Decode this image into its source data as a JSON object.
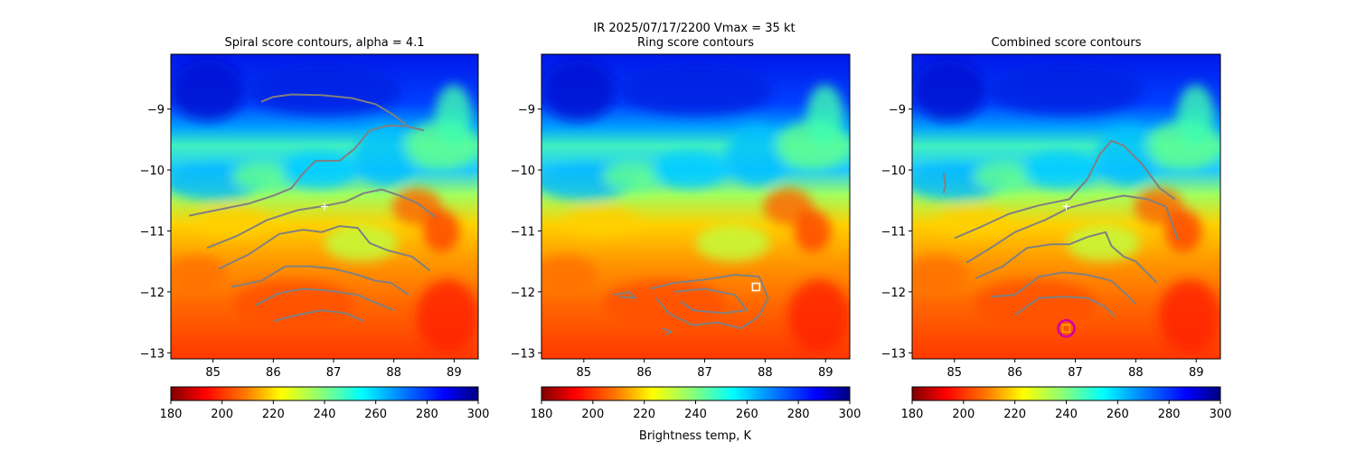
{
  "figure": {
    "suptitle_line1": "IR  2025/07/17/2200    Vmax = 35 kt",
    "colorbar_label": "Brightness temp, K"
  },
  "chart_data": [
    {
      "type": "heatmap",
      "title": "Spiral score contours, alpha =  4.1",
      "xlim": [
        84.3,
        89.4
      ],
      "ylim": [
        -13.1,
        -8.1
      ],
      "x_ticks": [
        85,
        86,
        87,
        88,
        89
      ],
      "y_ticks": [
        -9,
        -10,
        -11,
        -12,
        -13
      ],
      "x_tick_labels": [
        "85",
        "86",
        "87",
        "88",
        "89"
      ],
      "y_tick_labels": [
        "−9",
        "−10",
        "−11",
        "−12",
        "−13"
      ],
      "colorbar": {
        "vmin": 180,
        "vmax": 300,
        "ticks": [
          180,
          200,
          220,
          240,
          260,
          280,
          300
        ],
        "tick_labels": [
          "180",
          "200",
          "220",
          "240",
          "260",
          "280",
          "300"
        ],
        "cmap": "jet_r"
      },
      "contour_color": "#808080",
      "contours": [
        [
          [
            85.8,
            -8.88
          ],
          [
            86.0,
            -8.8
          ],
          [
            86.3,
            -8.76
          ],
          [
            86.8,
            -8.77
          ],
          [
            87.3,
            -8.82
          ],
          [
            87.7,
            -8.92
          ],
          [
            88.0,
            -9.1
          ],
          [
            88.2,
            -9.25
          ]
        ],
        [
          [
            88.5,
            -9.35
          ],
          [
            88.2,
            -9.28
          ],
          [
            87.9,
            -9.27
          ],
          [
            87.6,
            -9.35
          ],
          [
            87.35,
            -9.65
          ],
          [
            87.1,
            -9.85
          ],
          [
            86.7,
            -9.85
          ],
          [
            86.5,
            -10.05
          ],
          [
            86.3,
            -10.3
          ],
          [
            86.0,
            -10.42
          ],
          [
            85.6,
            -10.55
          ],
          [
            85.1,
            -10.65
          ],
          [
            84.6,
            -10.75
          ]
        ],
        [
          [
            84.9,
            -11.28
          ],
          [
            85.4,
            -11.08
          ],
          [
            85.9,
            -10.82
          ],
          [
            86.4,
            -10.66
          ],
          [
            86.9,
            -10.58
          ],
          [
            87.2,
            -10.52
          ],
          [
            87.5,
            -10.38
          ],
          [
            87.8,
            -10.32
          ],
          [
            88.1,
            -10.42
          ],
          [
            88.4,
            -10.55
          ],
          [
            88.7,
            -10.78
          ]
        ],
        [
          [
            85.1,
            -11.62
          ],
          [
            85.6,
            -11.38
          ],
          [
            86.1,
            -11.05
          ],
          [
            86.5,
            -10.98
          ],
          [
            86.8,
            -11.02
          ],
          [
            87.1,
            -10.92
          ],
          [
            87.4,
            -10.95
          ],
          [
            87.6,
            -11.2
          ],
          [
            87.9,
            -11.32
          ],
          [
            88.3,
            -11.42
          ],
          [
            88.6,
            -11.65
          ]
        ],
        [
          [
            85.3,
            -11.92
          ],
          [
            85.8,
            -11.82
          ],
          [
            86.2,
            -11.58
          ],
          [
            86.6,
            -11.58
          ],
          [
            87.0,
            -11.62
          ],
          [
            87.4,
            -11.72
          ],
          [
            87.7,
            -11.82
          ],
          [
            87.95,
            -11.85
          ],
          [
            88.25,
            -12.05
          ]
        ],
        [
          [
            85.7,
            -12.22
          ],
          [
            86.1,
            -12.02
          ],
          [
            86.5,
            -11.95
          ],
          [
            86.9,
            -11.98
          ],
          [
            87.4,
            -12.05
          ],
          [
            87.8,
            -12.22
          ],
          [
            88.0,
            -12.3
          ]
        ],
        [
          [
            86.0,
            -12.48
          ],
          [
            86.4,
            -12.38
          ],
          [
            86.8,
            -12.3
          ],
          [
            87.2,
            -12.35
          ],
          [
            87.5,
            -12.48
          ]
        ]
      ],
      "markers": [
        {
          "x": 86.85,
          "y": -10.6,
          "symbol": "+",
          "color": "#ffffff"
        }
      ]
    },
    {
      "type": "heatmap",
      "title": "Ring score contours",
      "xlim": [
        84.3,
        89.4
      ],
      "ylim": [
        -13.1,
        -8.1
      ],
      "x_ticks": [
        85,
        86,
        87,
        88,
        89
      ],
      "y_ticks": [
        -9,
        -10,
        -11,
        -12,
        -13
      ],
      "x_tick_labels": [
        "85",
        "86",
        "87",
        "88",
        "89"
      ],
      "y_tick_labels": [
        "−9",
        "−10",
        "−11",
        "−12",
        "−13"
      ],
      "colorbar": {
        "vmin": 180,
        "vmax": 300,
        "ticks": [
          180,
          200,
          220,
          240,
          260,
          280,
          300
        ],
        "tick_labels": [
          "180",
          "200",
          "220",
          "240",
          "260",
          "280",
          "300"
        ],
        "cmap": "jet_r"
      },
      "contour_color": "#808080",
      "contours": [
        [
          [
            85.5,
            -12.05
          ],
          [
            85.75,
            -12.0
          ],
          [
            85.85,
            -12.1
          ],
          [
            85.6,
            -12.08
          ]
        ],
        [
          [
            86.1,
            -11.95
          ],
          [
            86.5,
            -11.85
          ],
          [
            87.0,
            -11.8
          ],
          [
            87.5,
            -11.72
          ],
          [
            87.9,
            -11.75
          ],
          [
            88.05,
            -12.1
          ],
          [
            87.9,
            -12.4
          ],
          [
            87.6,
            -12.6
          ],
          [
            87.2,
            -12.5
          ],
          [
            86.8,
            -12.55
          ],
          [
            86.4,
            -12.35
          ],
          [
            86.2,
            -12.1
          ]
        ],
        [
          [
            86.5,
            -12.0
          ],
          [
            87.0,
            -11.95
          ],
          [
            87.5,
            -12.05
          ],
          [
            87.7,
            -12.3
          ],
          [
            87.3,
            -12.35
          ],
          [
            86.8,
            -12.3
          ],
          [
            86.6,
            -12.15
          ]
        ],
        [
          [
            86.3,
            -12.6
          ],
          [
            86.45,
            -12.65
          ],
          [
            86.35,
            -12.7
          ]
        ]
      ],
      "markers": [
        {
          "x": 87.85,
          "y": -11.92,
          "symbol": "square",
          "color": "#ffffff"
        }
      ]
    },
    {
      "type": "heatmap",
      "title": "Combined score contours",
      "xlim": [
        84.3,
        89.4
      ],
      "ylim": [
        -13.1,
        -8.1
      ],
      "x_ticks": [
        85,
        86,
        87,
        88,
        89
      ],
      "y_ticks": [
        -9,
        -10,
        -11,
        -12,
        -13
      ],
      "x_tick_labels": [
        "85",
        "86",
        "87",
        "88",
        "89"
      ],
      "y_tick_labels": [
        "−9",
        "−10",
        "−11",
        "−12",
        "−13"
      ],
      "colorbar": {
        "vmin": 180,
        "vmax": 300,
        "ticks": [
          180,
          200,
          220,
          240,
          260,
          280,
          300
        ],
        "tick_labels": [
          "180",
          "200",
          "220",
          "240",
          "260",
          "280",
          "300"
        ],
        "cmap": "jet_r"
      },
      "contour_color": "#808080",
      "contours": [
        [
          [
            84.82,
            -10.05
          ],
          [
            84.85,
            -10.25
          ],
          [
            84.82,
            -10.38
          ]
        ],
        [
          [
            85.0,
            -11.12
          ],
          [
            85.4,
            -10.95
          ],
          [
            85.9,
            -10.72
          ],
          [
            86.4,
            -10.58
          ],
          [
            86.9,
            -10.48
          ],
          [
            87.2,
            -10.15
          ],
          [
            87.4,
            -9.75
          ],
          [
            87.6,
            -9.52
          ],
          [
            87.8,
            -9.6
          ],
          [
            88.1,
            -9.9
          ],
          [
            88.4,
            -10.3
          ],
          [
            88.65,
            -10.48
          ]
        ],
        [
          [
            85.2,
            -11.52
          ],
          [
            85.6,
            -11.28
          ],
          [
            86.0,
            -11.02
          ],
          [
            86.5,
            -10.82
          ],
          [
            86.9,
            -10.62
          ],
          [
            87.3,
            -10.52
          ],
          [
            87.8,
            -10.42
          ],
          [
            88.2,
            -10.48
          ],
          [
            88.5,
            -10.6
          ],
          [
            88.7,
            -11.15
          ]
        ],
        [
          [
            85.35,
            -11.78
          ],
          [
            85.8,
            -11.58
          ],
          [
            86.2,
            -11.28
          ],
          [
            86.6,
            -11.22
          ],
          [
            86.9,
            -11.22
          ],
          [
            87.2,
            -11.1
          ],
          [
            87.5,
            -11.02
          ],
          [
            87.6,
            -11.25
          ],
          [
            87.8,
            -11.42
          ],
          [
            88.0,
            -11.5
          ],
          [
            88.35,
            -11.85
          ]
        ],
        [
          [
            85.6,
            -12.08
          ],
          [
            86.0,
            -12.05
          ],
          [
            86.4,
            -11.75
          ],
          [
            86.8,
            -11.68
          ],
          [
            87.2,
            -11.72
          ],
          [
            87.6,
            -11.82
          ],
          [
            87.85,
            -12.05
          ],
          [
            88.0,
            -12.2
          ]
        ],
        [
          [
            86.0,
            -12.38
          ],
          [
            86.4,
            -12.1
          ],
          [
            86.8,
            -12.08
          ],
          [
            87.2,
            -12.1
          ],
          [
            87.5,
            -12.25
          ],
          [
            87.65,
            -12.4
          ]
        ]
      ],
      "markers": [
        {
          "x": 86.85,
          "y": -10.6,
          "symbol": "+",
          "color": "#ffffff"
        },
        {
          "x": 86.85,
          "y": -12.6,
          "symbol": "circle",
          "color": "#cc00aa"
        },
        {
          "x": 86.85,
          "y": -12.6,
          "symbol": "square",
          "color": "#ffaa00"
        }
      ]
    }
  ]
}
